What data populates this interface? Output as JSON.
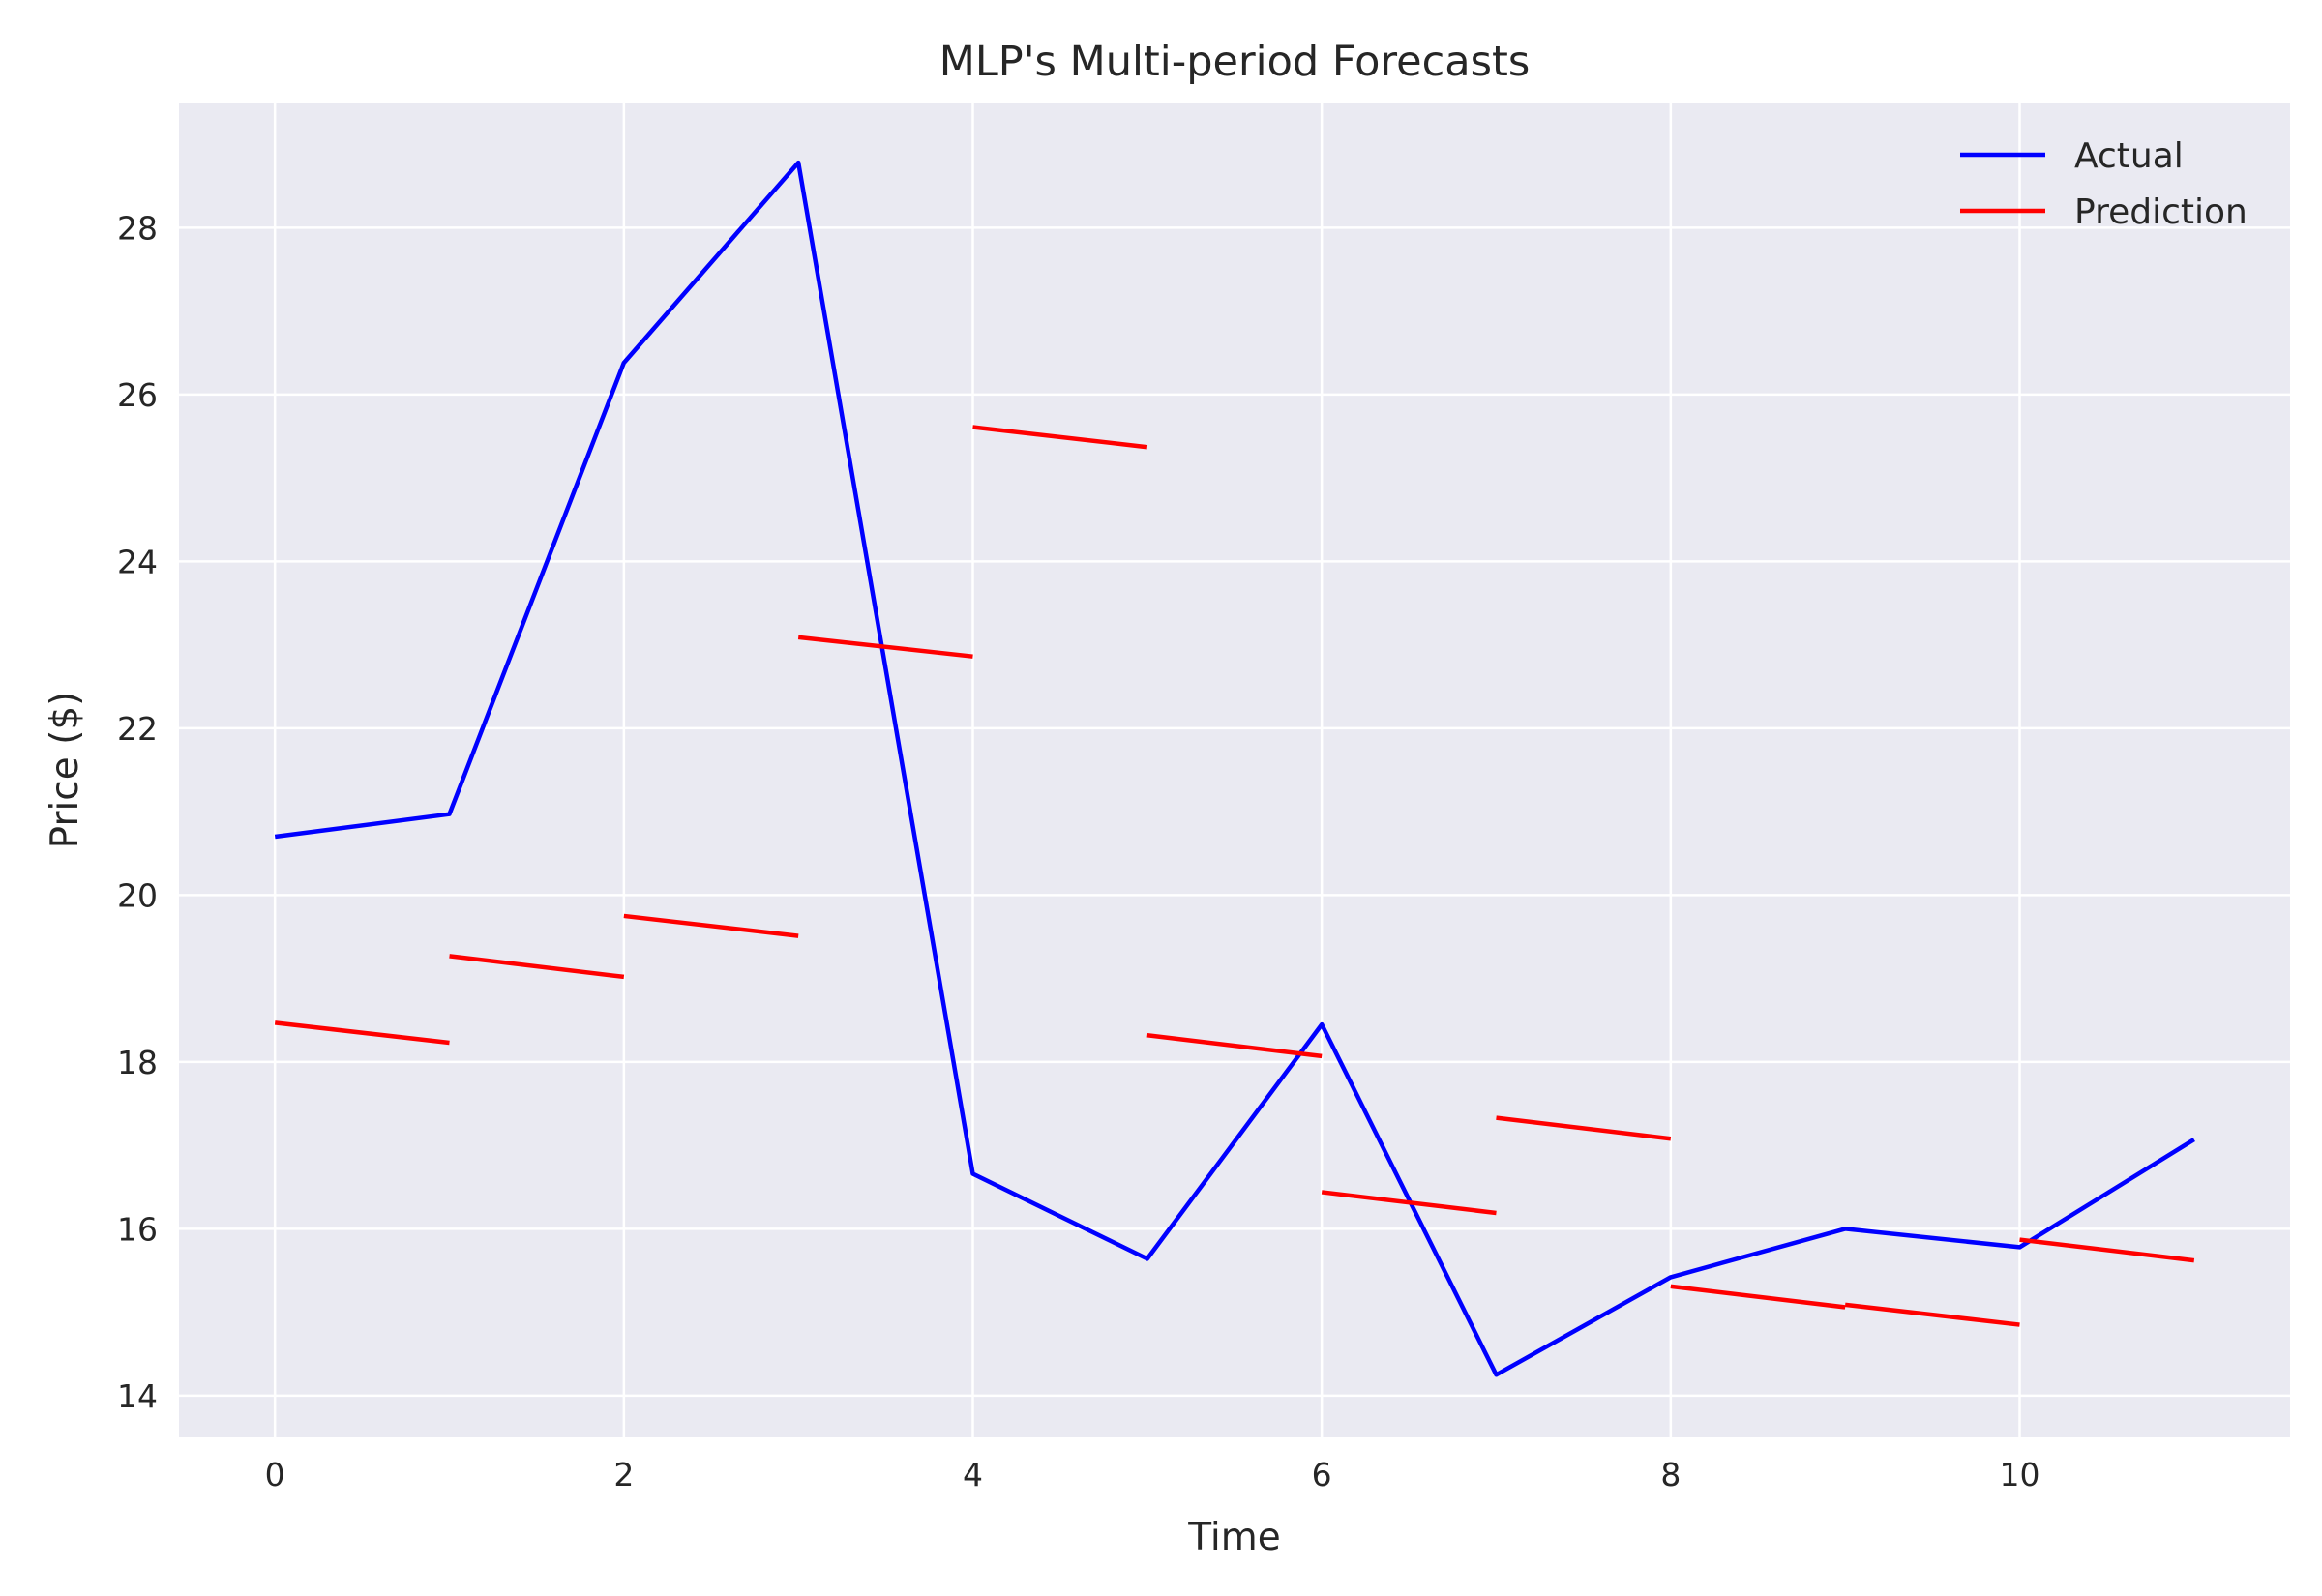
{
  "chart_data": {
    "type": "line",
    "title": "MLP's Multi-period Forecasts",
    "xlabel": "Time",
    "ylabel": "Price ($)",
    "xlim": [
      -0.55,
      11.55
    ],
    "ylim": [
      13.5,
      29.5
    ],
    "xticks": [
      0,
      2,
      4,
      6,
      8,
      10
    ],
    "yticks": [
      14,
      16,
      18,
      20,
      22,
      24,
      26,
      28
    ],
    "grid": true,
    "legend": "upper right",
    "colors": {
      "actual": "#0000ff",
      "prediction": "#ff0000",
      "background": "#eaeaf2",
      "grid": "#ffffff"
    },
    "series": [
      {
        "name": "Actual",
        "x": [
          0,
          1,
          2,
          3,
          4,
          5,
          6,
          7,
          8,
          9,
          10,
          11
        ],
        "y": [
          20.7,
          20.97,
          26.38,
          28.78,
          16.66,
          15.64,
          18.45,
          14.25,
          15.42,
          16.0,
          15.78,
          17.07
        ]
      },
      {
        "name": "Prediction",
        "segments": [
          {
            "x": [
              0,
              1
            ],
            "y": [
              18.47,
              18.23
            ]
          },
          {
            "x": [
              1,
              2
            ],
            "y": [
              19.27,
              19.02
            ]
          },
          {
            "x": [
              2,
              3
            ],
            "y": [
              19.75,
              19.51
            ]
          },
          {
            "x": [
              3,
              4
            ],
            "y": [
              23.09,
              22.86
            ]
          },
          {
            "x": [
              4,
              5
            ],
            "y": [
              25.61,
              25.37
            ]
          },
          {
            "x": [
              5,
              6
            ],
            "y": [
              18.32,
              18.07
            ]
          },
          {
            "x": [
              6,
              7
            ],
            "y": [
              16.44,
              16.19
            ]
          },
          {
            "x": [
              7,
              8
            ],
            "y": [
              17.33,
              17.08
            ]
          },
          {
            "x": [
              8,
              9
            ],
            "y": [
              15.31,
              15.06
            ]
          },
          {
            "x": [
              9,
              10
            ],
            "y": [
              15.09,
              14.85
            ]
          },
          {
            "x": [
              10,
              11
            ],
            "y": [
              15.87,
              15.62
            ]
          }
        ]
      }
    ]
  }
}
